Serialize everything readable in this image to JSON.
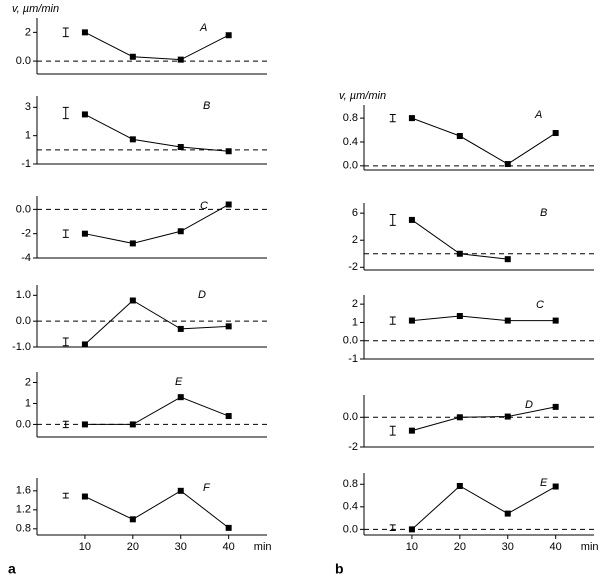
{
  "chart_data": [
    {
      "type": "line",
      "ylabel": "v,  µm/min",
      "annotation": "A",
      "x": [
        10,
        20,
        30,
        40
      ],
      "values": [
        2.0,
        0.3,
        0.1,
        1.8
      ],
      "xlim": [
        0,
        48
      ],
      "ylim": [
        -0.9,
        3.0
      ],
      "yticks": [
        2,
        {
          "value": 0,
          "label": "0.0"
        }
      ],
      "reference_line": 0,
      "error_bar": {
        "x": 6,
        "value": 2.0,
        "error": 0.3
      },
      "color": "#000000"
    },
    {
      "type": "line",
      "annotation": "B",
      "x": [
        10,
        20,
        30,
        40
      ],
      "values": [
        2.5,
        0.74,
        0.2,
        -0.1
      ],
      "xlim": [
        0,
        48
      ],
      "ylim": [
        -1,
        3.8
      ],
      "yticks": [
        3,
        1,
        -1
      ],
      "reference_line": 0,
      "error_bar": {
        "x": 6,
        "value": 2.6,
        "error": 0.4
      },
      "color": "#000000"
    },
    {
      "type": "line",
      "annotation": "C",
      "x": [
        10,
        20,
        30,
        40
      ],
      "values": [
        -2.0,
        -2.8,
        -1.8,
        0.4
      ],
      "xlim": [
        0,
        48
      ],
      "ylim": [
        -4,
        1.1
      ],
      "yticks": [
        {
          "value": 0,
          "label": "0.0"
        },
        -2,
        -4
      ],
      "reference_line": 0,
      "error_bar": {
        "x": 6,
        "value": -2.0,
        "error": 0.3
      },
      "color": "#000000"
    },
    {
      "type": "line",
      "annotation": "D",
      "x": [
        10,
        20,
        30,
        40
      ],
      "values": [
        -0.9,
        0.8,
        -0.3,
        -0.2
      ],
      "xlim": [
        0,
        48
      ],
      "ylim": [
        -1,
        1.4
      ],
      "yticks": [
        {
          "value": 1,
          "label": "1.0"
        },
        {
          "value": 0,
          "label": "0.0"
        },
        {
          "value": -1,
          "label": "-1.0"
        }
      ],
      "reference_line": 0,
      "error_bar": {
        "x": 6,
        "value": -0.8,
        "error": 0.15
      },
      "color": "#000000"
    },
    {
      "type": "line",
      "annotation": "E",
      "x": [
        10,
        20,
        30,
        40
      ],
      "values": [
        0.0,
        0.0,
        1.3,
        0.4
      ],
      "xlim": [
        0,
        48
      ],
      "ylim": [
        -0.6,
        2.5
      ],
      "yticks": [
        2,
        1,
        {
          "value": 0,
          "label": "0.0"
        }
      ],
      "reference_line": 0,
      "error_bar": {
        "x": 6,
        "value": 0.0,
        "error": 0.15
      },
      "color": "#000000"
    },
    {
      "type": "line",
      "annotation": "F",
      "panel_label": "a",
      "xlabel": "min",
      "x": [
        10,
        20,
        30,
        40
      ],
      "values": [
        1.48,
        1.0,
        1.6,
        0.82
      ],
      "xlim": [
        0,
        48
      ],
      "xticks": [
        10,
        20,
        30,
        40
      ],
      "ylim": [
        0.67,
        1.87
      ],
      "yticks": [
        1.6,
        1.2,
        0.8
      ],
      "error_bar": {
        "x": 6,
        "value": 1.5,
        "error": 0.05
      },
      "color": "#000000"
    },
    {
      "type": "line",
      "ylabel": "v,  µm/min",
      "annotation": "A",
      "x": [
        10,
        20,
        30,
        40
      ],
      "values": [
        0.8,
        0.5,
        0.03,
        0.55
      ],
      "xlim": [
        0,
        48
      ],
      "ylim": [
        -0.07,
        1.02
      ],
      "yticks": [
        0.8,
        0.4,
        {
          "value": 0,
          "label": "0.0"
        }
      ],
      "reference_line": 0,
      "error_bar": {
        "x": 6,
        "value": 0.8,
        "error": 0.06
      },
      "color": "#000000"
    },
    {
      "type": "line",
      "annotation": "B",
      "x": [
        10,
        20,
        30,
        40
      ],
      "values": [
        5,
        0,
        -0.8,
        null
      ],
      "xlim": [
        0,
        48
      ],
      "ylim": [
        -2.4,
        7.5
      ],
      "yticks": [
        6,
        2,
        -2
      ],
      "reference_line": 0,
      "error_bar": {
        "x": 6,
        "value": 5,
        "error": 0.8
      },
      "color": "#000000"
    },
    {
      "type": "line",
      "annotation": "C",
      "x": [
        10,
        20,
        30,
        40
      ],
      "values": [
        1.1,
        1.35,
        1.1,
        1.1
      ],
      "xlim": [
        0,
        48
      ],
      "ylim": [
        -1,
        2.5
      ],
      "yticks": [
        2,
        1,
        {
          "value": 0,
          "label": "0.0"
        },
        -1
      ],
      "reference_line": 0,
      "error_bar": {
        "x": 6,
        "value": 1.1,
        "error": 0.2
      },
      "color": "#000000"
    },
    {
      "type": "line",
      "annotation": "D",
      "x": [
        10,
        20,
        30,
        40
      ],
      "values": [
        -0.9,
        0.0,
        0.05,
        0.7
      ],
      "xlim": [
        0,
        48
      ],
      "ylim": [
        -2,
        1.5
      ],
      "yticks": [
        {
          "value": 0,
          "label": "0.0"
        },
        -2
      ],
      "reference_line": 0,
      "error_bar": {
        "x": 6,
        "value": -0.9,
        "error": 0.3
      },
      "color": "#000000"
    },
    {
      "type": "line",
      "annotation": "E",
      "panel_label": "b",
      "xlabel": "min",
      "x": [
        10,
        20,
        30,
        40
      ],
      "values": [
        0.0,
        0.77,
        0.28,
        0.76
      ],
      "xlim": [
        0,
        48
      ],
      "xticks": [
        10,
        20,
        30,
        40
      ],
      "ylim": [
        -0.1,
        1.0
      ],
      "yticks": [
        0.8,
        0.4,
        {
          "value": 0,
          "label": "0.0"
        }
      ],
      "reference_line": 0,
      "error_bar": {
        "x": 6,
        "value": 0.03,
        "error": 0.05
      },
      "color": "#000000"
    }
  ]
}
